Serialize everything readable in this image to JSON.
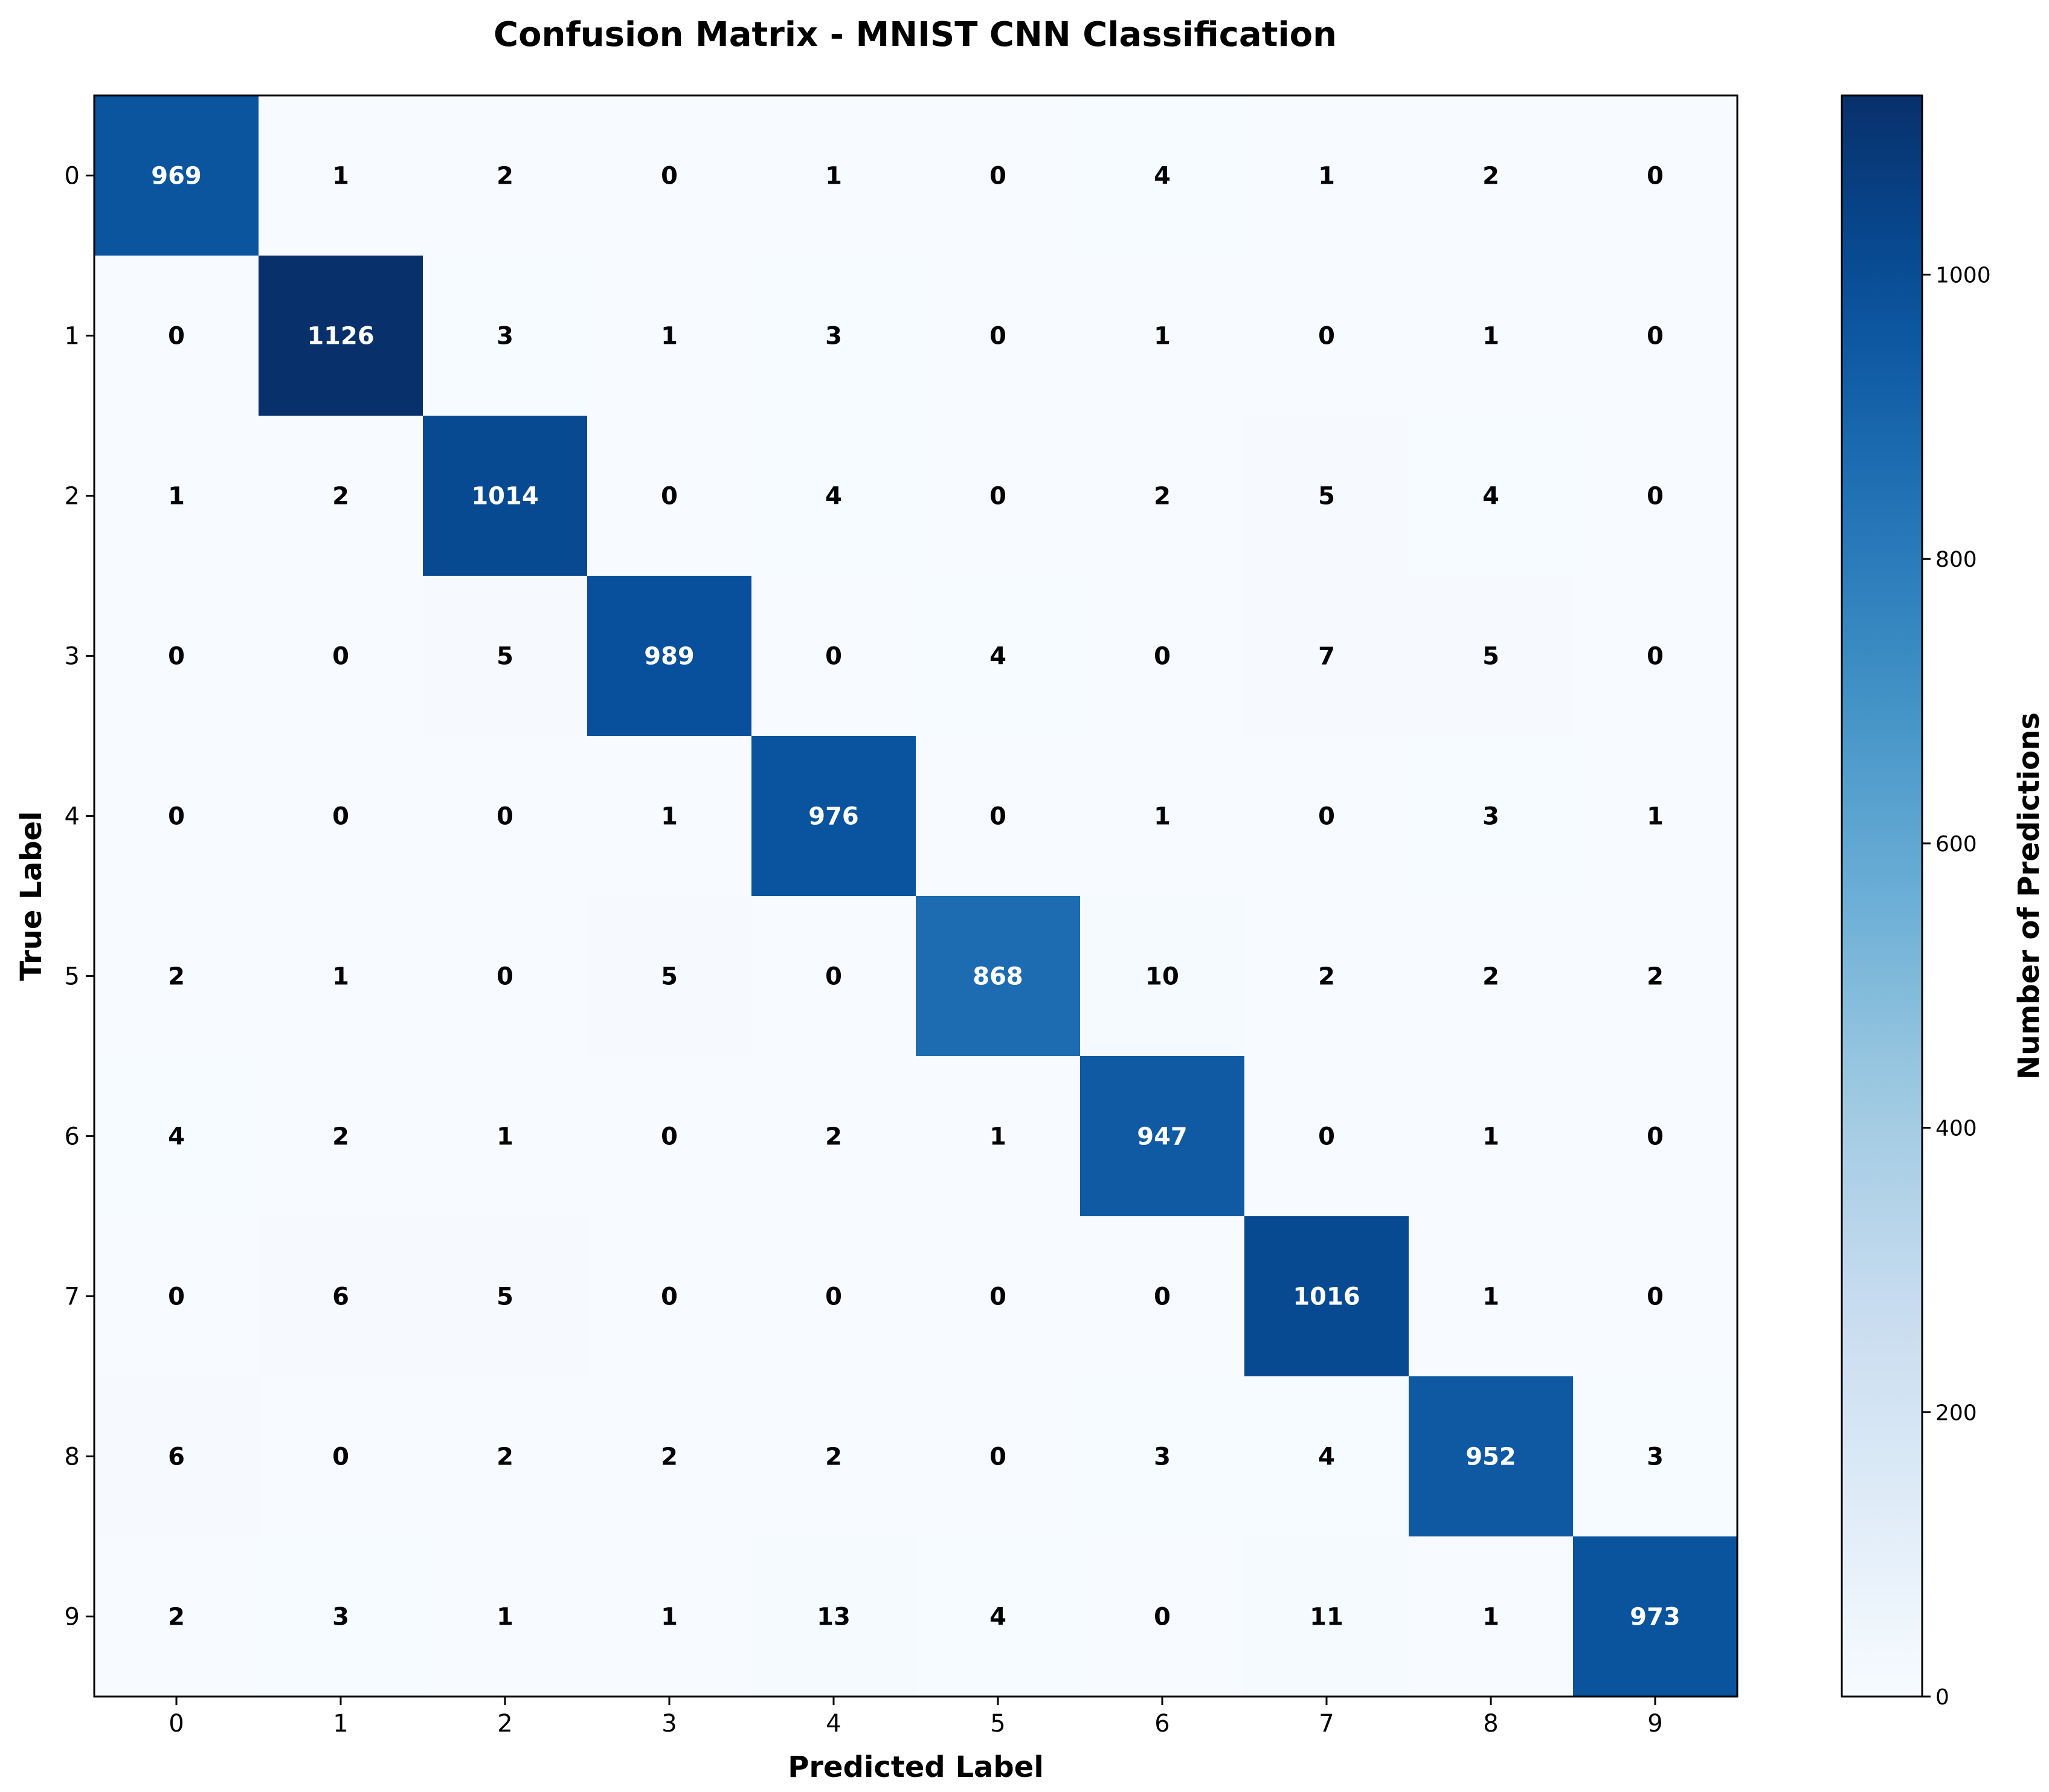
{
  "chart_data": {
    "type": "heatmap",
    "title": "Confusion Matrix - MNIST CNN Classification",
    "xlabel": "Predicted Label",
    "ylabel": "True Label",
    "x_categories": [
      "0",
      "1",
      "2",
      "3",
      "4",
      "5",
      "6",
      "7",
      "8",
      "9"
    ],
    "y_categories": [
      "0",
      "1",
      "2",
      "3",
      "4",
      "5",
      "6",
      "7",
      "8",
      "9"
    ],
    "matrix": [
      [
        969,
        1,
        2,
        0,
        1,
        0,
        4,
        1,
        2,
        0
      ],
      [
        0,
        1126,
        3,
        1,
        3,
        0,
        1,
        0,
        1,
        0
      ],
      [
        1,
        2,
        1014,
        0,
        4,
        0,
        2,
        5,
        4,
        0
      ],
      [
        0,
        0,
        5,
        989,
        0,
        4,
        0,
        7,
        5,
        0
      ],
      [
        0,
        0,
        0,
        1,
        976,
        0,
        1,
        0,
        3,
        1
      ],
      [
        2,
        1,
        0,
        5,
        0,
        868,
        10,
        2,
        2,
        2
      ],
      [
        4,
        2,
        1,
        0,
        2,
        1,
        947,
        0,
        1,
        0
      ],
      [
        0,
        6,
        5,
        0,
        0,
        0,
        0,
        1016,
        1,
        0
      ],
      [
        6,
        0,
        2,
        2,
        2,
        0,
        3,
        4,
        952,
        3
      ],
      [
        2,
        3,
        1,
        1,
        13,
        4,
        0,
        11,
        1,
        973
      ]
    ],
    "colorbar": {
      "label": "Number of Predictions",
      "range": [
        0,
        1126
      ],
      "ticks": [
        0,
        200,
        400,
        600,
        800,
        1000
      ]
    },
    "colormap": "Blues",
    "grid": false
  }
}
